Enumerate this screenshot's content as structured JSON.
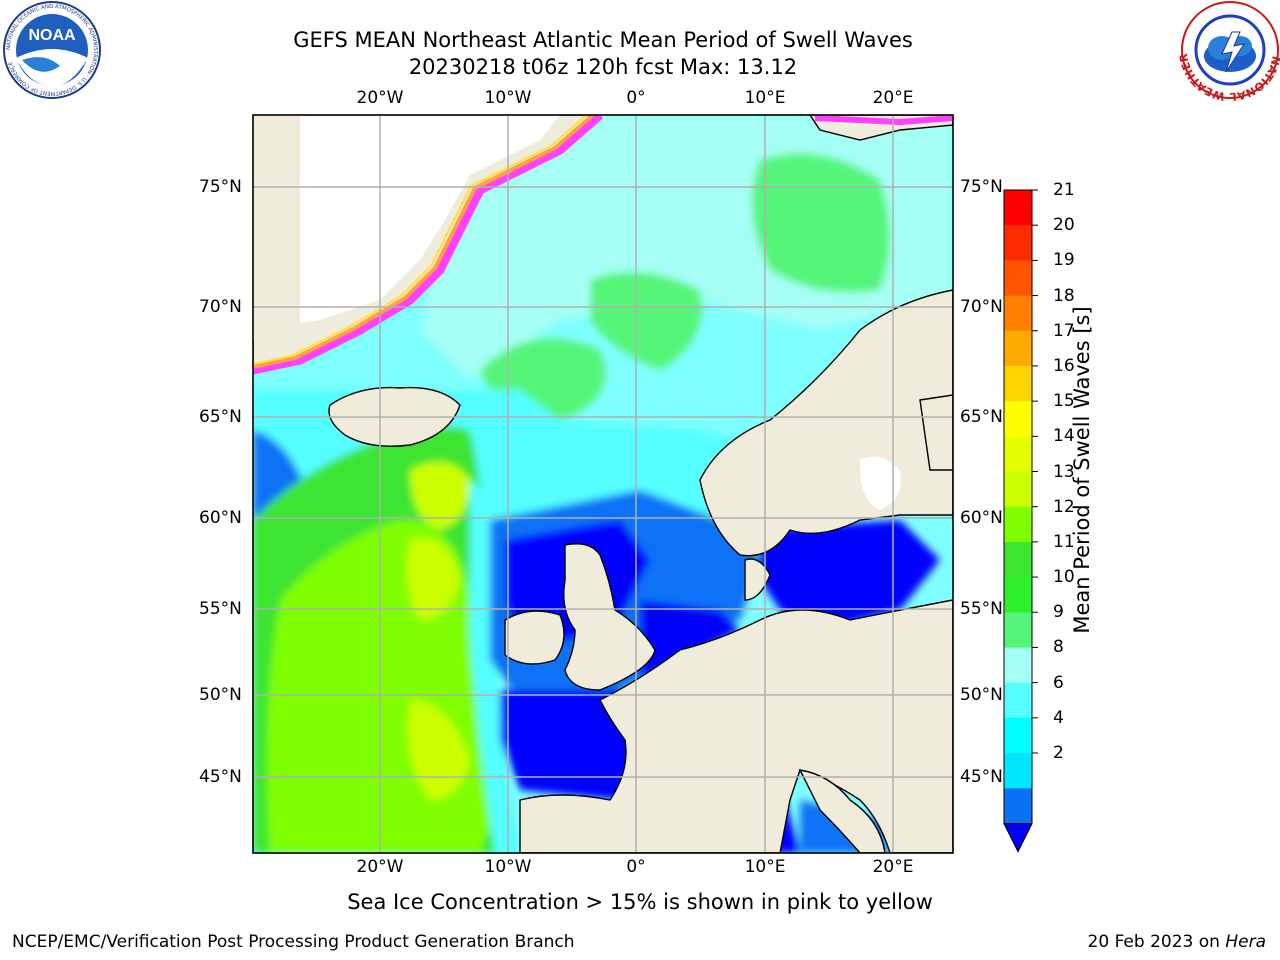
{
  "header": {
    "title_line1": "GEFS MEAN Northeast Atlantic Mean Period of Swell Waves",
    "title_line2": "20230218 t06z 120h fcst   Max: 13.12"
  },
  "logos": {
    "noaa_text": "NOAA",
    "noaa_ring_text": "NATIONAL OCEANIC AND ATMOSPHERIC ADMINISTRATION · U.S. DEPARTMENT OF COMMERCE",
    "nws_ring_text": "NATIONAL WEATHER SERVICE"
  },
  "map": {
    "lon_labels_top": [
      "20°W",
      "10°W",
      "0°",
      "10°E",
      "20°E"
    ],
    "lon_labels_bottom": [
      "20°W",
      "10°W",
      "0°",
      "10°E",
      "20°E"
    ],
    "lat_labels_left": [
      "75°N",
      "70°N",
      "65°N",
      "60°N",
      "55°N",
      "50°N",
      "45°N"
    ],
    "lat_labels_right": [
      "75°N",
      "70°N",
      "65°N",
      "60°N",
      "55°N",
      "50°N",
      "45°N"
    ],
    "colors": {
      "ocean_light": "#7fffff",
      "ocean_cyan": "#3fe9ff",
      "ocean_pale": "#a6fff5",
      "blue": "#0a67f5",
      "deep_blue": "#0000ff",
      "green": "#4cf07c",
      "bright_green": "#4ae840",
      "lime": "#80f020",
      "yellow_green": "#c8ee20",
      "land": "#efecdc",
      "ice_edge_pink": "#ff40ff",
      "ice_edge_orange": "#ffa040",
      "ice_edge_yellow": "#ffe040"
    }
  },
  "colorbar": {
    "label": "Mean Period of Swell Waves [s]",
    "ticks": [
      "21",
      "20",
      "19",
      "18",
      "17",
      "16",
      "15",
      "14",
      "13",
      "12",
      "11",
      "10",
      "9",
      "8",
      "6",
      "4",
      "2"
    ],
    "colors": [
      "#ff0000",
      "#ff2b00",
      "#ff5500",
      "#ff8000",
      "#ffaa00",
      "#ffd500",
      "#ffff00",
      "#e5ff00",
      "#ccff00",
      "#7fff00",
      "#3de530",
      "#2cf02c",
      "#55f57a",
      "#a6fff5",
      "#55ffff",
      "#00ffff",
      "#00e6ff",
      "#0b72f5",
      "#0000ff"
    ]
  },
  "caption": "Sea Ice Concentration > 15% is shown in pink to yellow",
  "footer": {
    "left": "NCEP/EMC/Verification Post Processing Product Generation Branch",
    "right_prefix": "20 Feb 2023 on ",
    "right_host": "Hera"
  }
}
